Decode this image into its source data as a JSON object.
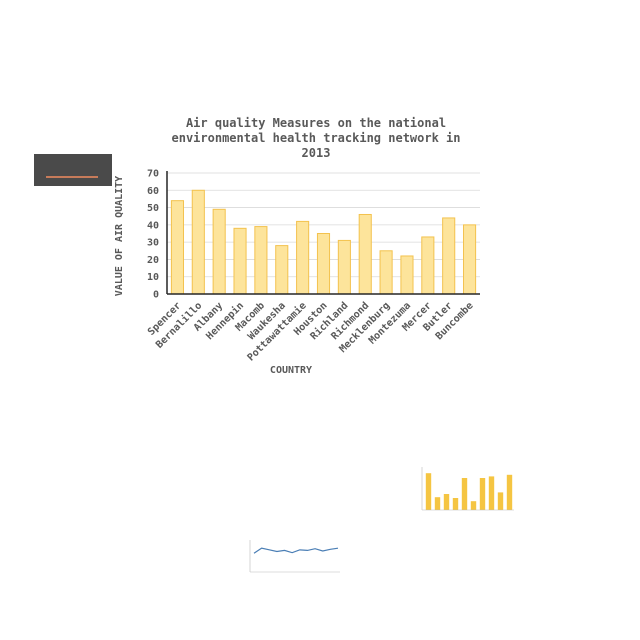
{
  "chart_data": {
    "type": "bar",
    "title_lines": [
      "Air quality Measures on the national",
      "environmental health tracking network in",
      "2013"
    ],
    "xlabel": "COUNTRY",
    "ylabel": "VALUE OF  AIR QUALITY",
    "categories": [
      "Spencer",
      "Bernalillo",
      "Albany",
      "Hennepin",
      "Macomb",
      "Waukesha",
      "Pottawattamie",
      "Houston",
      "Richland",
      "Richmond",
      "Mecklenburg",
      "Montezuma",
      "Mercer",
      "Butler",
      "Buncombe"
    ],
    "values": [
      54,
      60,
      49,
      38,
      39,
      28,
      42,
      35,
      31,
      46,
      25,
      22,
      33,
      44,
      40
    ],
    "yticks": [
      0,
      10,
      20,
      30,
      40,
      50,
      60,
      70
    ],
    "ylim": [
      0,
      70
    ],
    "grid": true,
    "colors": {
      "bar_fill": "#fde49b",
      "bar_stroke": "#f3c24e",
      "grid": "#d9d9d9",
      "axis": "#262626"
    }
  },
  "thumbnails": {
    "bar": {
      "values": [
        46,
        16,
        20,
        15,
        40,
        11,
        40,
        42,
        22,
        44
      ],
      "color": "#f5c542"
    },
    "line": {
      "values": [
        60,
        78,
        72,
        66,
        70,
        62,
        72,
        70,
        76,
        68,
        74,
        78
      ],
      "color": "#4a7eb5"
    },
    "dark": {
      "color": "#4a4a4a"
    }
  }
}
